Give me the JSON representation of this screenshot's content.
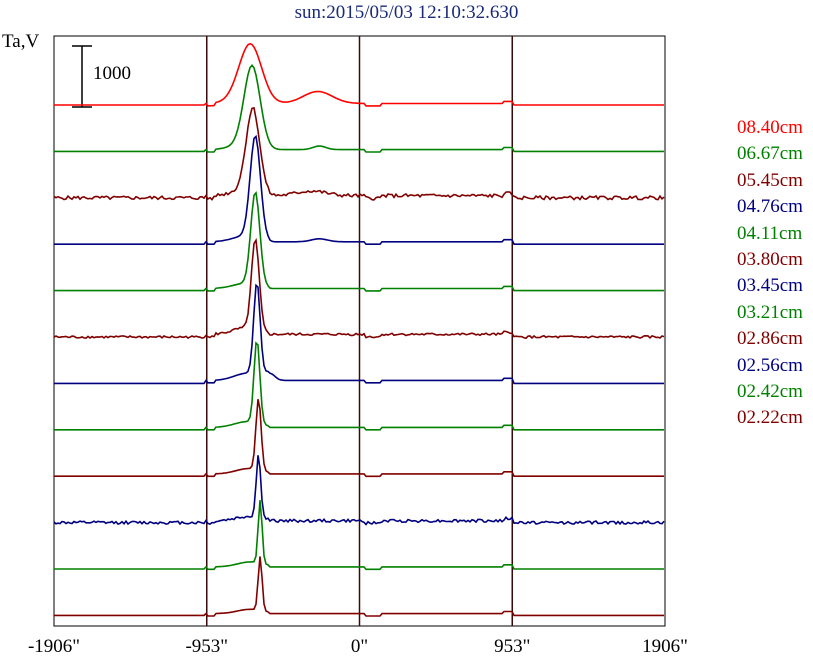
{
  "title": "sun:2015/05/03 12:10:32.630",
  "y_unit_label": "Ta,V",
  "scale_bar_label": "1000",
  "chart_data": {
    "type": "line",
    "title": "sun:2015/05/03 12:10:32.630",
    "ylabel": "Ta,V",
    "scale_bar_value": 1000,
    "grid": "vertical",
    "legend_position": "right",
    "x_ticks": [
      {
        "value": -1906,
        "label": "-1906\""
      },
      {
        "value": -953,
        "label": "-953\""
      },
      {
        "value": 0,
        "label": "0\""
      },
      {
        "value": 953,
        "label": "953\""
      },
      {
        "value": 1906,
        "label": "1906\""
      }
    ],
    "xlim": [
      -1906,
      1906
    ],
    "series": [
      {
        "name": "08.40cm",
        "color": "#ff0000",
        "peak_x": -680,
        "peak": 950,
        "width": 70,
        "secondary": {
          "x": -260,
          "value": 200,
          "width": 90
        },
        "shoulder": 100,
        "noise": 0
      },
      {
        "name": "06.67cm",
        "color": "#008000",
        "peak_x": -670,
        "peak": 1350,
        "width": 50,
        "secondary": {
          "x": -250,
          "value": 60,
          "width": 40
        },
        "shoulder": 120,
        "noise": 0
      },
      {
        "name": "05.45cm",
        "color": "#800000",
        "peak_x": -665,
        "peak": 1400,
        "width": 42,
        "secondary": {
          "x": -300,
          "value": 80,
          "width": 90
        },
        "shoulder": 140,
        "noise": 30
      },
      {
        "name": "04.76cm",
        "color": "#000080",
        "peak_x": -650,
        "peak": 1700,
        "width": 32,
        "secondary": {
          "x": -250,
          "value": 50,
          "width": 50
        },
        "shoulder": 160,
        "noise": 0
      },
      {
        "name": "04.11cm",
        "color": "#008000",
        "peak_x": -650,
        "peak": 1550,
        "width": 28,
        "secondary": {
          "x": -300,
          "value": 0,
          "width": 50
        },
        "shoulder": 140,
        "noise": 0
      },
      {
        "name": "03.80cm",
        "color": "#800000",
        "peak_x": -650,
        "peak": 1500,
        "width": 24,
        "secondary": {
          "x": -300,
          "value": 0,
          "width": 50
        },
        "shoulder": 180,
        "noise": 20
      },
      {
        "name": "03.45cm",
        "color": "#000080",
        "peak_x": -640,
        "peak": 1550,
        "width": 20,
        "secondary": {
          "x": -560,
          "value": 120,
          "width": 30
        },
        "shoulder": 200,
        "noise": 0
      },
      {
        "name": "03.21cm",
        "color": "#008000",
        "peak_x": -640,
        "peak": 1400,
        "width": 18,
        "secondary": {
          "x": -500,
          "value": 0,
          "width": 30
        },
        "shoulder": 160,
        "noise": 0
      },
      {
        "name": "02.86cm",
        "color": "#800000",
        "peak_x": -630,
        "peak": 1200,
        "width": 16,
        "secondary": {
          "x": -500,
          "value": 0,
          "width": 30
        },
        "shoulder": 150,
        "noise": 0
      },
      {
        "name": "02.56cm",
        "color": "#000080",
        "peak_x": -630,
        "peak": 1050,
        "width": 14,
        "secondary": {
          "x": -500,
          "value": 0,
          "width": 30
        },
        "shoulder": 120,
        "noise": 25
      },
      {
        "name": "02.42cm",
        "color": "#008000",
        "peak_x": -620,
        "peak": 1050,
        "width": 12,
        "secondary": {
          "x": -500,
          "value": 0,
          "width": 30
        },
        "shoulder": 140,
        "noise": 0
      },
      {
        "name": "02.22cm",
        "color": "#800000",
        "peak_x": -620,
        "peak": 900,
        "width": 12,
        "secondary": {
          "x": -500,
          "value": 0,
          "width": 30
        },
        "shoulder": 120,
        "noise": 0
      }
    ]
  },
  "colors": {
    "title": "#1a2a7a",
    "frame": "#000000",
    "gridline": "#3a0a0a"
  }
}
